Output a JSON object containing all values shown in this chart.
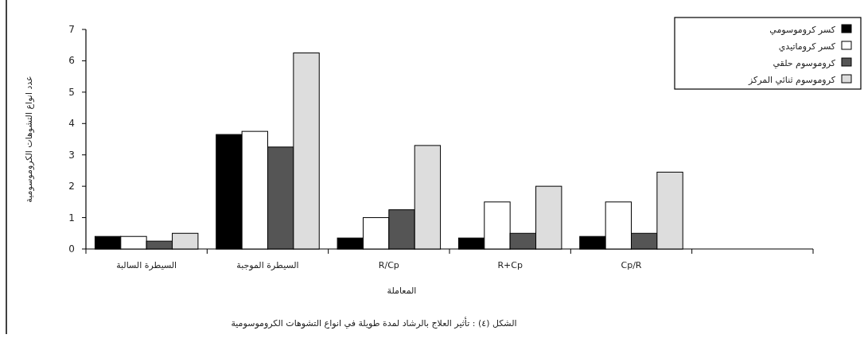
{
  "chart_data": {
    "type": "bar",
    "xlabel": "المعاملة",
    "ylabel": "عدد انواع التشوهات الكروموسومية",
    "categories": [
      "السيطرة السالبة",
      "السيطرة الموجبة",
      "R/Cp",
      "R+Cp",
      "Cp/R",
      null
    ],
    "series": [
      {
        "name": "كسر كروموسومي",
        "color": "#000000",
        "values": [
          0.4,
          3.65,
          0.35,
          0.35,
          0.4,
          null
        ]
      },
      {
        "name": "كسر كروماتيدي",
        "color": "#ffffff",
        "values": [
          0.4,
          3.75,
          1.0,
          1.5,
          1.5,
          null
        ]
      },
      {
        "name": "كروموسوم حلقي",
        "color": "#555555",
        "values": [
          0.25,
          3.25,
          1.25,
          0.5,
          0.5,
          null
        ]
      },
      {
        "name": "كروموسوم ثنائي المركز",
        "color": "#dddddd",
        "values": [
          0.5,
          6.25,
          3.3,
          2.0,
          2.45,
          null
        ]
      }
    ],
    "ylim": [
      0,
      7
    ],
    "yticks": [
      0,
      1,
      2,
      3,
      4,
      5,
      6,
      7
    ],
    "grid": false,
    "legend": "top right",
    "annotations": [
      "الشكل (٤) : تأثير العلاج بالرشاد لمدة طويلة في انواع التشوهات الكروموسومية"
    ]
  }
}
